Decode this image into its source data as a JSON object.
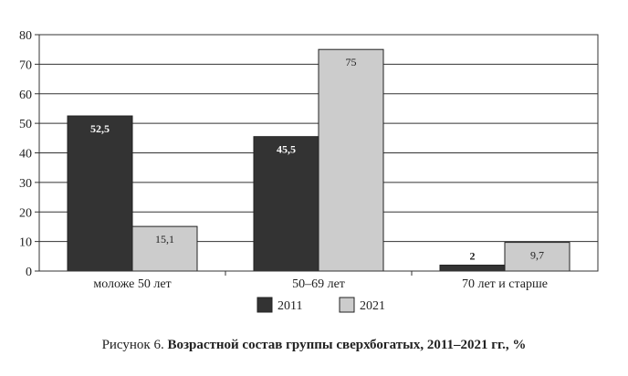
{
  "chart_data": {
    "type": "bar",
    "categories": [
      "моложе 50 лет",
      "50–69 лет",
      "70 лет и старше"
    ],
    "series": [
      {
        "name": "2011",
        "values": [
          52.5,
          45.5,
          2
        ],
        "labels": [
          "52,5",
          "45,5",
          "2"
        ],
        "color": "#333333"
      },
      {
        "name": "2021",
        "values": [
          15.1,
          75,
          9.7
        ],
        "labels": [
          "15,1",
          "75",
          "9,7"
        ],
        "color": "#cccccc"
      }
    ],
    "ylim": [
      0,
      80
    ],
    "yticks": [
      0,
      10,
      20,
      30,
      40,
      50,
      60,
      70,
      80
    ],
    "grid": true,
    "legend_placement": "bottom"
  },
  "caption": {
    "prefix": "Рисунок 6.",
    "title": "Возрастной состав группы сверхбогатых, 2011–2021 гг., %"
  }
}
